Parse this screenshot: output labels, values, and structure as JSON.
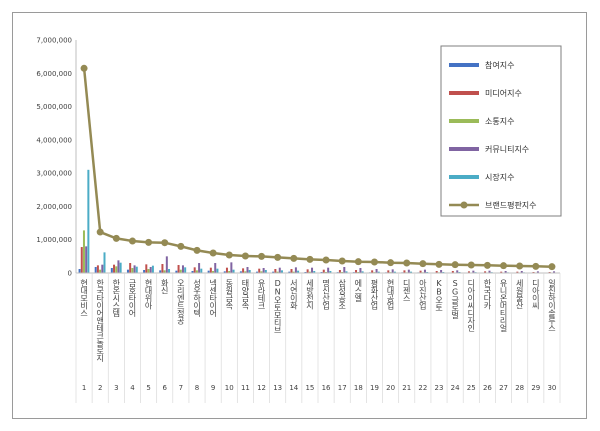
{
  "chart_data": {
    "type": "bar",
    "ylim": [
      0,
      7000000
    ],
    "yticks": [
      "0",
      "1,000,000",
      "2,000,000",
      "3,000,000",
      "4,000,000",
      "5,000,000",
      "6,000,000",
      "7,000,000"
    ],
    "ytick_values": [
      0,
      1000000,
      2000000,
      3000000,
      4000000,
      5000000,
      6000000,
      7000000
    ],
    "grid": false,
    "legend_position": "top-right",
    "categories": [
      "현대모비스",
      "한국타이어앤테크놀로지",
      "한온시스템",
      "금호타이어",
      "현대위아",
      "화신",
      "오리엔트정공",
      "성우하이텍",
      "넥센타이어",
      "동원금속",
      "태양금속",
      "유라테크",
      "DN오토모티브",
      "서연이화",
      "세방전지",
      "명신산업",
      "삼성공조",
      "에스엘",
      "평화산업",
      "현대공업",
      "디젠스",
      "아진산업",
      "KB오토",
      "SG글로벌",
      "디아이씨디자인",
      "한국다카",
      "유니온머티리얼",
      "세원물산",
      "디아이씨",
      "일진하이솔루스"
    ],
    "ranks": [
      "1",
      "2",
      "3",
      "4",
      "5",
      "6",
      "7",
      "8",
      "9",
      "10",
      "11",
      "12",
      "13",
      "14",
      "15",
      "16",
      "17",
      "18",
      "19",
      "20",
      "21",
      "22",
      "23",
      "24",
      "25",
      "26",
      "27",
      "28",
      "29",
      "30"
    ],
    "series": [
      {
        "name": "참여지수",
        "kind": "bar",
        "color": "#4472c4",
        "values": [
          120000,
          180000,
          150000,
          100000,
          90000,
          80000,
          70000,
          60000,
          70000,
          50000,
          50000,
          40000,
          40000,
          40000,
          30000,
          30000,
          25000,
          25000,
          20000,
          20000,
          20000,
          18000,
          15000,
          15000,
          12000,
          12000,
          10000,
          10000,
          8000,
          8000
        ]
      },
      {
        "name": "미디어지수",
        "kind": "bar",
        "color": "#c0504d",
        "values": [
          780000,
          230000,
          250000,
          300000,
          260000,
          270000,
          240000,
          170000,
          160000,
          160000,
          140000,
          130000,
          120000,
          120000,
          110000,
          100000,
          90000,
          90000,
          80000,
          80000,
          80000,
          70000,
          60000,
          60000,
          50000,
          50000,
          40000,
          40000,
          30000,
          30000
        ]
      },
      {
        "name": "소통지수",
        "kind": "bar",
        "color": "#9bbb59",
        "values": [
          1280000,
          100000,
          200000,
          150000,
          120000,
          80000,
          100000,
          80000,
          60000,
          60000,
          50000,
          50000,
          40000,
          40000,
          40000,
          30000,
          30000,
          30000,
          25000,
          25000,
          20000,
          20000,
          20000,
          15000,
          15000,
          15000,
          12000,
          12000,
          10000,
          10000
        ]
      },
      {
        "name": "커뮤니티지수",
        "kind": "bar",
        "color": "#8064a2",
        "values": [
          800000,
          250000,
          380000,
          230000,
          180000,
          500000,
          230000,
          300000,
          300000,
          320000,
          180000,
          150000,
          160000,
          170000,
          160000,
          160000,
          180000,
          150000,
          120000,
          110000,
          100000,
          100000,
          90000,
          80000,
          70000,
          70000,
          60000,
          60000,
          50000,
          50000
        ]
      },
      {
        "name": "시장지수",
        "kind": "bar",
        "color": "#4bacc6",
        "values": [
          3100000,
          620000,
          310000,
          190000,
          220000,
          120000,
          170000,
          130000,
          130000,
          100000,
          90000,
          90000,
          80000,
          70000,
          60000,
          60000,
          50000,
          50000,
          40000,
          40000,
          40000,
          30000,
          30000,
          30000,
          25000,
          25000,
          20000,
          20000,
          15000,
          15000
        ]
      },
      {
        "name": "브랜드평판지수",
        "kind": "line",
        "color": "#948a54",
        "values": [
          6150000,
          1230000,
          1040000,
          960000,
          920000,
          910000,
          800000,
          680000,
          600000,
          540000,
          510000,
          500000,
          470000,
          440000,
          410000,
          390000,
          360000,
          340000,
          330000,
          310000,
          300000,
          280000,
          260000,
          250000,
          240000,
          230000,
          220000,
          210000,
          200000,
          190000
        ]
      }
    ]
  }
}
